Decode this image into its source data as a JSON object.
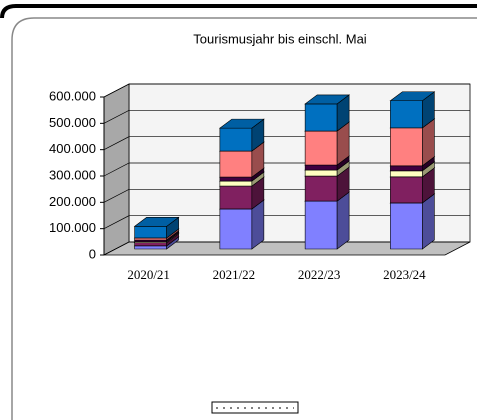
{
  "chart_data": {
    "type": "bar3d_stacked",
    "title": "Tourismusjahr bis einschl. Mai",
    "categories": [
      "2020/21",
      "2021/22",
      "2022/23",
      "2023/24"
    ],
    "series": [
      {
        "color": "#8080ff",
        "values": [
          12000,
          152000,
          182000,
          175000
        ]
      },
      {
        "color": "#802060",
        "values": [
          12000,
          87000,
          95000,
          99000
        ]
      },
      {
        "color": "#ffffc0",
        "values": [
          4000,
          19000,
          23000,
          23000
        ]
      },
      {
        "color": "#400040",
        "values": [
          6000,
          15000,
          19000,
          19000
        ]
      },
      {
        "color": "#ff8080",
        "values": [
          8000,
          99000,
          129000,
          144000
        ]
      },
      {
        "color": "#0070c0",
        "values": [
          44000,
          87000,
          103000,
          103000
        ]
      }
    ],
    "ylim": [
      0,
      600000
    ],
    "yticks": [
      0,
      {
        "value": 100000,
        "label": "100.000"
      },
      {
        "value": 200000,
        "label": "200.000"
      },
      {
        "value": 300000,
        "label": "300.000"
      },
      {
        "value": 400000,
        "label": "400.000"
      },
      {
        "value": 500000,
        "label": "500.000"
      },
      {
        "value": 600000,
        "label": "600.000"
      }
    ],
    "grid": true
  }
}
